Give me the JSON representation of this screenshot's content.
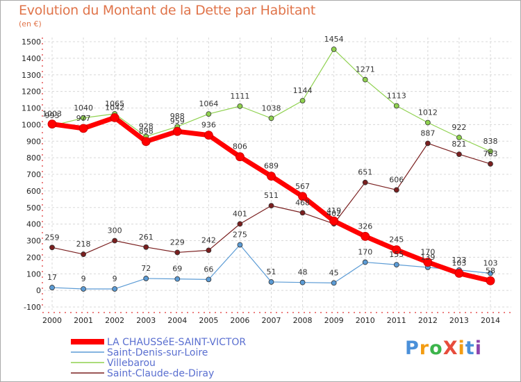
{
  "title": "Evolution du Montant de la Dette par Habitant",
  "subtitle": "(en €)",
  "brand": {
    "text": "ProXiti",
    "colors": [
      "#4a90d9",
      "#f39c12",
      "#3cb44b",
      "#e74c3c",
      "#f39c12",
      "#4a90d9",
      "#8e44ad"
    ]
  },
  "chart_data": {
    "type": "line",
    "title": "Evolution du Montant de la Dette par Habitant",
    "ylabel": "(en €)",
    "xlabel": "",
    "x": [
      "2000",
      "2001",
      "2002",
      "2003",
      "2004",
      "2005",
      "2006",
      "2007",
      "2008",
      "2009",
      "2010",
      "2011",
      "2012",
      "2013",
      "2014"
    ],
    "ylim": [
      -100,
      1500
    ],
    "yticks": [
      -100,
      0,
      100,
      200,
      300,
      400,
      500,
      600,
      700,
      800,
      900,
      1000,
      1100,
      1200,
      1300,
      1400,
      1500
    ],
    "grid": true,
    "legend_position": "bottom-left",
    "series": [
      {
        "name": "Saint-Claude-de-Diray",
        "color": "#7a1f1f",
        "width": 1.2,
        "values": [
          259,
          218,
          300,
          261,
          229,
          242,
          401,
          511,
          468,
          402,
          651,
          606,
          887,
          821,
          763
        ],
        "labels": [
          "259",
          "218",
          "300",
          "261",
          "229",
          "242",
          "401",
          "511",
          "468",
          "402",
          "651",
          "606",
          "887",
          "821",
          "763"
        ]
      },
      {
        "name": "Saint-Denis-sur-Loire",
        "color": "#5b9bd5",
        "width": 1.2,
        "values": [
          17,
          9,
          9,
          72,
          69,
          66,
          275,
          51,
          48,
          45,
          170,
          155,
          139,
          123,
          103
        ],
        "labels": [
          "17",
          "9",
          "9",
          "72",
          "69",
          "66",
          "275",
          "51",
          "48",
          "45",
          "170",
          "155",
          "139",
          "123",
          "103"
        ]
      },
      {
        "name": "Villebarou",
        "color": "#8fd14f",
        "width": 1.2,
        "values": [
          993,
          1040,
          1065,
          928,
          988,
          1064,
          1111,
          1038,
          1144,
          1454,
          1271,
          1113,
          1012,
          922,
          838
        ],
        "labels": [
          "993",
          "1040",
          "1065",
          "928",
          "988",
          "1064",
          "1111",
          "1038",
          "1144",
          "1454",
          "1271",
          "1113",
          "1012",
          "922",
          "838"
        ]
      },
      {
        "name": "LA CHAUSSéE-SAINT-VICTOR",
        "color": "#ff0000",
        "width": 7,
        "values": [
          1003,
          977,
          1042,
          898,
          959,
          936,
          806,
          689,
          567,
          419,
          326,
          245,
          170,
          103,
          58
        ],
        "labels": [
          "1003",
          "977",
          "1042",
          "898",
          "959",
          "936",
          "806",
          "689",
          "567",
          "419",
          "326",
          "245",
          "170",
          "103",
          "58"
        ]
      }
    ]
  }
}
